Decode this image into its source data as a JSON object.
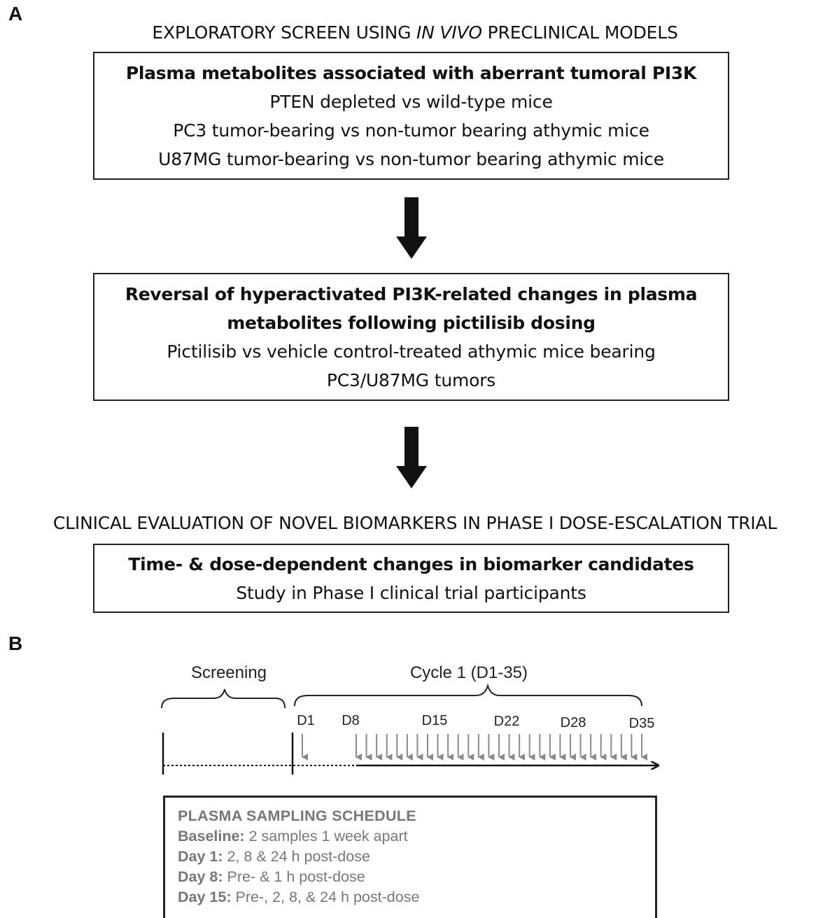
{
  "panel_a": {
    "letter": "A",
    "heading_pre": "EXPLORATORY SCREEN USING ",
    "heading_italic": "IN VIVO",
    "heading_post": " PRECLINICAL MODELS",
    "box1": {
      "title": "Plasma metabolites associated with aberrant tumoral PI3K",
      "lines": [
        "PTEN depleted vs wild-type mice",
        "PC3 tumor-bearing vs non-tumor bearing athymic mice",
        "U87MG tumor-bearing vs non-tumor bearing athymic mice"
      ]
    },
    "box2": {
      "title_lines": [
        "Reversal of hyperactivated PI3K-related changes in plasma",
        "metabolites following pictilisib dosing"
      ],
      "lines": [
        "Pictilisib vs vehicle control-treated athymic mice bearing",
        "PC3/U87MG tumors"
      ]
    },
    "clinical_heading": "CLINICAL EVALUATION OF NOVEL BIOMARKERS IN PHASE I DOSE-ESCALATION TRIAL",
    "box3": {
      "title": "Time- & dose-dependent changes in biomarker candidates",
      "line": "Study in Phase I clinical trial participants"
    }
  },
  "panel_b": {
    "letter": "B",
    "screening_label": "Screening",
    "cycle_label": "Cycle 1 (D1-35)",
    "day_labels": [
      "D1",
      "D8",
      "D15",
      "D22",
      "D28",
      "D35"
    ],
    "sampling_arrow_count": 29,
    "colors": {
      "sampling_arrow": "#8a8a8a",
      "line": "#111111",
      "schedule_text": "#777777"
    },
    "schedule": {
      "title": "PLASMA SAMPLING SCHEDULE",
      "rows": [
        {
          "label": "Baseline:",
          "text": " 2 samples 1 week apart"
        },
        {
          "label": "Day 1:",
          "text": " 2, 8 & 24 h post-dose"
        },
        {
          "label": "Day 8:",
          "text": " Pre- & 1 h post-dose"
        },
        {
          "label": "Day 15:",
          "text": " Pre-, 2, 8, & 24 h post-dose"
        }
      ]
    }
  }
}
